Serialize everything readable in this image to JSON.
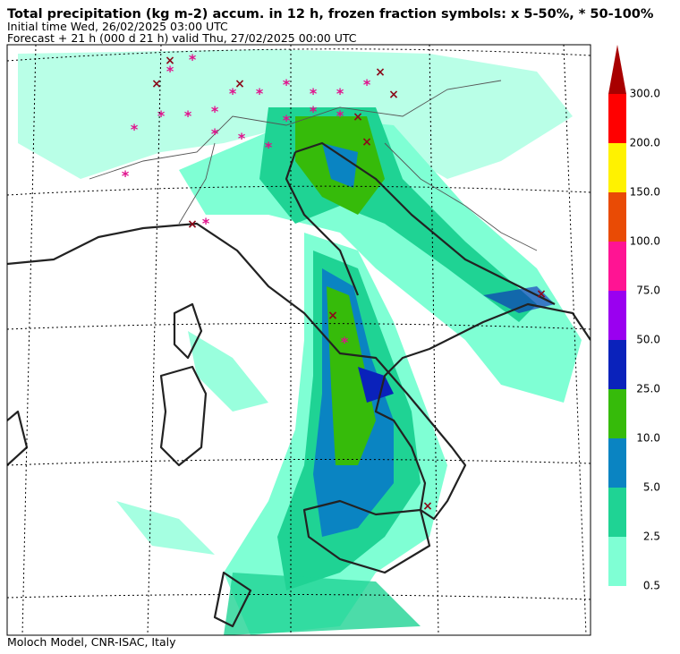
{
  "header": {
    "title": "Total precipitation (kg m-2) accum. in 12 h, frozen fraction symbols: x 5-50%, * 50-100%",
    "initial_time": "Initial time  Wed, 26/02/2025  03:00 UTC",
    "forecast": "Forecast  +  21 h  (000 d 21 h)  valid Thu, 27/02/2025 00:00 UTC"
  },
  "legend": {
    "labels": [
      "0.5",
      "2.5",
      "5.0",
      "10.0",
      "25.0",
      "50.0",
      "75.0",
      "100.0",
      "150.0",
      "200.0",
      "300.0"
    ],
    "colors": [
      "#7fffd4",
      "#1fd394",
      "#0a84c2",
      "#36bb0a",
      "#0a22bb",
      "#9a00f0",
      "#ff1493",
      "#e94b05",
      "#fff200",
      "#ff0000"
    ],
    "overflow_color": "#a80000"
  },
  "footer": "Moloch Model, CNR-ISAC, Italy"
}
